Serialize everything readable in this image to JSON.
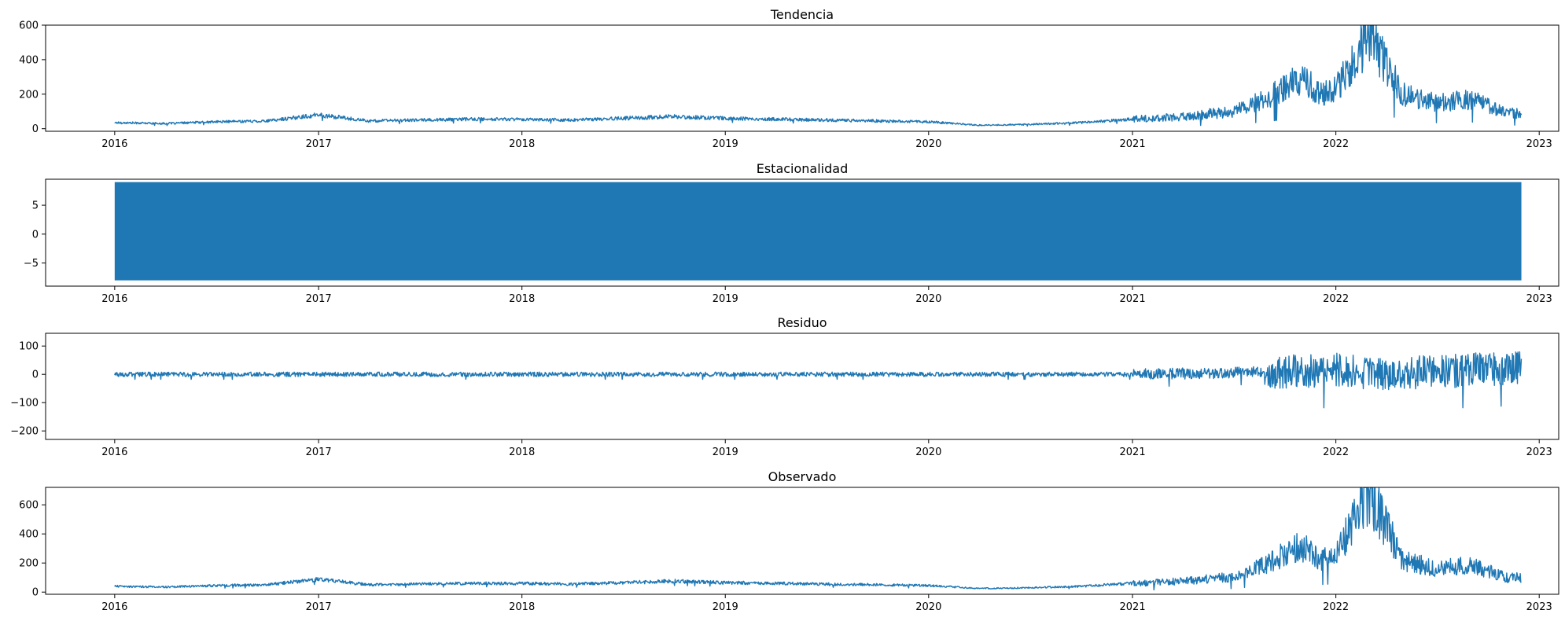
{
  "chart_data": [
    {
      "type": "line",
      "title": "Tendencia",
      "xlabel": "",
      "ylabel": "",
      "x_range": [
        "2016-01-01",
        "2022-11-30"
      ],
      "xlim": [
        "2015-08-30",
        "2023-02-05"
      ],
      "ylim": [
        -15,
        600
      ],
      "yticks": [
        0,
        200,
        400,
        600
      ],
      "x_ticks": [
        "2016",
        "2017",
        "2018",
        "2019",
        "2020",
        "2021",
        "2022",
        "2023"
      ],
      "color": "#1f77b4",
      "grid": false,
      "series": [
        {
          "x": [
            "2016-01",
            "2016-04",
            "2016-07",
            "2016-10",
            "2017-01",
            "2017-04",
            "2017-07",
            "2017-10",
            "2018-01",
            "2018-04",
            "2018-07",
            "2018-10",
            "2019-01",
            "2019-04",
            "2019-07",
            "2019-10",
            "2020-01",
            "2020-04",
            "2020-07",
            "2020-10",
            "2021-01",
            "2021-04",
            "2021-07",
            "2021-09",
            "2021-11",
            "2021-12",
            "2022-01",
            "2022-03",
            "2022-05",
            "2022-07",
            "2022-09",
            "2022-11"
          ],
          "values": [
            35,
            30,
            40,
            45,
            80,
            45,
            50,
            55,
            55,
            50,
            60,
            70,
            60,
            55,
            50,
            45,
            40,
            20,
            25,
            35,
            55,
            70,
            100,
            180,
            300,
            200,
            230,
            560,
            200,
            150,
            170,
            90
          ]
        }
      ]
    },
    {
      "type": "line",
      "title": "Estacionalidad",
      "xlabel": "",
      "ylabel": "",
      "x_range": [
        "2016-01-01",
        "2022-11-30"
      ],
      "xlim": [
        "2015-08-30",
        "2023-02-05"
      ],
      "ylim": [
        -9,
        9.5
      ],
      "yticks": [
        -5,
        0,
        5
      ],
      "x_ticks": [
        "2016",
        "2017",
        "2018",
        "2019",
        "2020",
        "2021",
        "2022",
        "2023"
      ],
      "color": "#1f77b4",
      "grid": false,
      "series": [
        {
          "min": -8,
          "max": 9
        }
      ]
    },
    {
      "type": "line",
      "title": "Residuo",
      "xlabel": "",
      "ylabel": "",
      "x_range": [
        "2016-01-01",
        "2022-11-30"
      ],
      "xlim": [
        "2015-08-30",
        "2023-02-05"
      ],
      "ylim": [
        -230,
        145
      ],
      "yticks": [
        -200,
        -100,
        0,
        100
      ],
      "x_ticks": [
        "2016",
        "2017",
        "2018",
        "2019",
        "2020",
        "2021",
        "2022",
        "2023"
      ],
      "color": "#1f77b4",
      "grid": false,
      "series": [
        {
          "x": [
            "2016-01",
            "2017-01",
            "2018-01",
            "2019-01",
            "2020-01",
            "2021-01",
            "2021-06",
            "2021-10",
            "2022-01",
            "2022-04",
            "2022-07",
            "2022-11"
          ],
          "values": [
            0,
            0,
            0,
            0,
            0,
            0,
            5,
            10,
            15,
            0,
            10,
            20
          ]
        }
      ]
    },
    {
      "type": "line",
      "title": "Observado",
      "xlabel": "",
      "ylabel": "",
      "x_range": [
        "2016-01-01",
        "2022-11-30"
      ],
      "xlim": [
        "2015-08-30",
        "2023-02-05"
      ],
      "ylim": [
        -15,
        720
      ],
      "yticks": [
        0,
        200,
        400,
        600
      ],
      "x_ticks": [
        "2016",
        "2017",
        "2018",
        "2019",
        "2020",
        "2021",
        "2022",
        "2023"
      ],
      "color": "#1f77b4",
      "grid": false,
      "series": [
        {
          "x": [
            "2016-01",
            "2016-04",
            "2016-07",
            "2016-10",
            "2017-01",
            "2017-04",
            "2017-07",
            "2017-10",
            "2018-01",
            "2018-04",
            "2018-07",
            "2018-10",
            "2019-01",
            "2019-04",
            "2019-07",
            "2019-10",
            "2020-01",
            "2020-04",
            "2020-07",
            "2020-10",
            "2021-01",
            "2021-04",
            "2021-07",
            "2021-09",
            "2021-11",
            "2021-12",
            "2022-01",
            "2022-03",
            "2022-05",
            "2022-07",
            "2022-09",
            "2022-11"
          ],
          "values": [
            40,
            35,
            45,
            50,
            90,
            50,
            55,
            60,
            60,
            55,
            65,
            75,
            65,
            60,
            55,
            50,
            45,
            25,
            30,
            40,
            60,
            75,
            105,
            200,
            320,
            220,
            250,
            690,
            220,
            160,
            190,
            100
          ]
        }
      ]
    }
  ]
}
